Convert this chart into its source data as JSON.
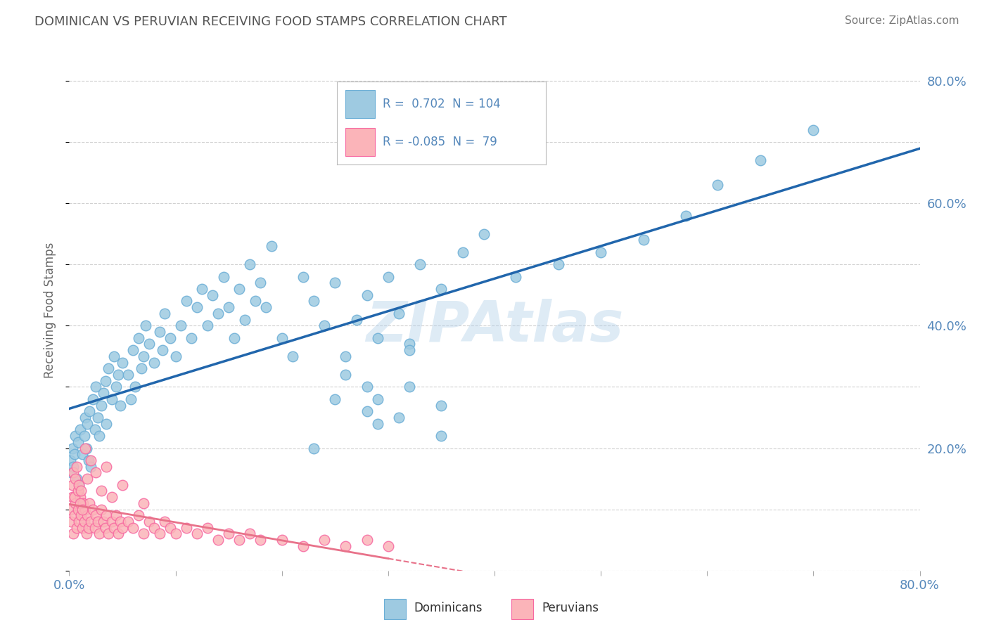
{
  "title": "DOMINICAN VS PERUVIAN RECEIVING FOOD STAMPS CORRELATION CHART",
  "source": "Source: ZipAtlas.com",
  "ylabel": "Receiving Food Stamps",
  "xlim": [
    0.0,
    0.8
  ],
  "ylim": [
    0.0,
    0.85
  ],
  "xticks": [
    0.0,
    0.1,
    0.2,
    0.3,
    0.4,
    0.5,
    0.6,
    0.7,
    0.8
  ],
  "ytick_right_vals": [
    0.2,
    0.4,
    0.6,
    0.8
  ],
  "ytick_right_labels": [
    "20.0%",
    "40.0%",
    "60.0%",
    "80.0%"
  ],
  "dominican_color": "#9ecae1",
  "dominican_edge": "#6baed6",
  "peruvian_color": "#fbb4b9",
  "peruvian_edge": "#f768a1",
  "trend_dominican_color": "#2166ac",
  "trend_peruvian_color": "#e8728a",
  "r_dominican": 0.702,
  "n_dominican": 104,
  "r_peruvian": -0.085,
  "n_peruvian": 79,
  "legend_label_dominican": "Dominicans",
  "legend_label_peruvian": "Peruvians",
  "watermark": "ZIPAtlas",
  "background_color": "#ffffff",
  "grid_color": "#cccccc",
  "title_color": "#555555",
  "axis_label_color": "#5588bb",
  "dominican_x": [
    0.001,
    0.002,
    0.003,
    0.004,
    0.005,
    0.006,
    0.007,
    0.008,
    0.009,
    0.01,
    0.012,
    0.014,
    0.015,
    0.016,
    0.017,
    0.018,
    0.019,
    0.02,
    0.022,
    0.024,
    0.025,
    0.027,
    0.028,
    0.03,
    0.032,
    0.034,
    0.035,
    0.037,
    0.04,
    0.042,
    0.044,
    0.046,
    0.048,
    0.05,
    0.055,
    0.058,
    0.06,
    0.062,
    0.065,
    0.068,
    0.07,
    0.072,
    0.075,
    0.08,
    0.085,
    0.088,
    0.09,
    0.095,
    0.1,
    0.105,
    0.11,
    0.115,
    0.12,
    0.125,
    0.13,
    0.135,
    0.14,
    0.145,
    0.15,
    0.155,
    0.16,
    0.165,
    0.17,
    0.175,
    0.18,
    0.185,
    0.19,
    0.2,
    0.21,
    0.22,
    0.23,
    0.24,
    0.25,
    0.26,
    0.27,
    0.28,
    0.29,
    0.3,
    0.31,
    0.32,
    0.33,
    0.35,
    0.37,
    0.39,
    0.28,
    0.32,
    0.35,
    0.42,
    0.46,
    0.5,
    0.54,
    0.58,
    0.61,
    0.65,
    0.7,
    0.31,
    0.29,
    0.35,
    0.26,
    0.28,
    0.32,
    0.29,
    0.25,
    0.23
  ],
  "dominican_y": [
    0.18,
    0.16,
    0.2,
    0.17,
    0.19,
    0.22,
    0.15,
    0.21,
    0.14,
    0.23,
    0.19,
    0.22,
    0.25,
    0.2,
    0.24,
    0.18,
    0.26,
    0.17,
    0.28,
    0.23,
    0.3,
    0.25,
    0.22,
    0.27,
    0.29,
    0.31,
    0.24,
    0.33,
    0.28,
    0.35,
    0.3,
    0.32,
    0.27,
    0.34,
    0.32,
    0.28,
    0.36,
    0.3,
    0.38,
    0.33,
    0.35,
    0.4,
    0.37,
    0.34,
    0.39,
    0.36,
    0.42,
    0.38,
    0.35,
    0.4,
    0.44,
    0.38,
    0.43,
    0.46,
    0.4,
    0.45,
    0.42,
    0.48,
    0.43,
    0.38,
    0.46,
    0.41,
    0.5,
    0.44,
    0.47,
    0.43,
    0.53,
    0.38,
    0.35,
    0.48,
    0.44,
    0.4,
    0.47,
    0.35,
    0.41,
    0.45,
    0.38,
    0.48,
    0.42,
    0.37,
    0.5,
    0.46,
    0.52,
    0.55,
    0.3,
    0.36,
    0.27,
    0.48,
    0.5,
    0.52,
    0.54,
    0.58,
    0.63,
    0.67,
    0.72,
    0.25,
    0.28,
    0.22,
    0.32,
    0.26,
    0.3,
    0.24,
    0.28,
    0.2
  ],
  "peruvian_x": [
    0.001,
    0.002,
    0.003,
    0.004,
    0.005,
    0.006,
    0.007,
    0.008,
    0.009,
    0.01,
    0.011,
    0.012,
    0.013,
    0.014,
    0.015,
    0.016,
    0.017,
    0.018,
    0.019,
    0.02,
    0.022,
    0.024,
    0.025,
    0.027,
    0.028,
    0.03,
    0.032,
    0.034,
    0.035,
    0.037,
    0.04,
    0.042,
    0.044,
    0.046,
    0.048,
    0.05,
    0.055,
    0.06,
    0.065,
    0.07,
    0.075,
    0.08,
    0.085,
    0.09,
    0.095,
    0.1,
    0.11,
    0.12,
    0.13,
    0.14,
    0.15,
    0.16,
    0.17,
    0.18,
    0.2,
    0.22,
    0.24,
    0.26,
    0.28,
    0.3,
    0.003,
    0.004,
    0.005,
    0.006,
    0.007,
    0.008,
    0.009,
    0.01,
    0.011,
    0.012,
    0.015,
    0.017,
    0.02,
    0.025,
    0.03,
    0.035,
    0.04,
    0.05,
    0.07
  ],
  "peruvian_y": [
    0.1,
    0.08,
    0.12,
    0.06,
    0.09,
    0.11,
    0.07,
    0.1,
    0.08,
    0.12,
    0.09,
    0.07,
    0.11,
    0.08,
    0.1,
    0.06,
    0.09,
    0.07,
    0.11,
    0.08,
    0.1,
    0.07,
    0.09,
    0.08,
    0.06,
    0.1,
    0.08,
    0.07,
    0.09,
    0.06,
    0.08,
    0.07,
    0.09,
    0.06,
    0.08,
    0.07,
    0.08,
    0.07,
    0.09,
    0.06,
    0.08,
    0.07,
    0.06,
    0.08,
    0.07,
    0.06,
    0.07,
    0.06,
    0.07,
    0.05,
    0.06,
    0.05,
    0.06,
    0.05,
    0.05,
    0.04,
    0.05,
    0.04,
    0.05,
    0.04,
    0.14,
    0.16,
    0.12,
    0.15,
    0.17,
    0.13,
    0.14,
    0.11,
    0.13,
    0.1,
    0.2,
    0.15,
    0.18,
    0.16,
    0.13,
    0.17,
    0.12,
    0.14,
    0.11
  ]
}
